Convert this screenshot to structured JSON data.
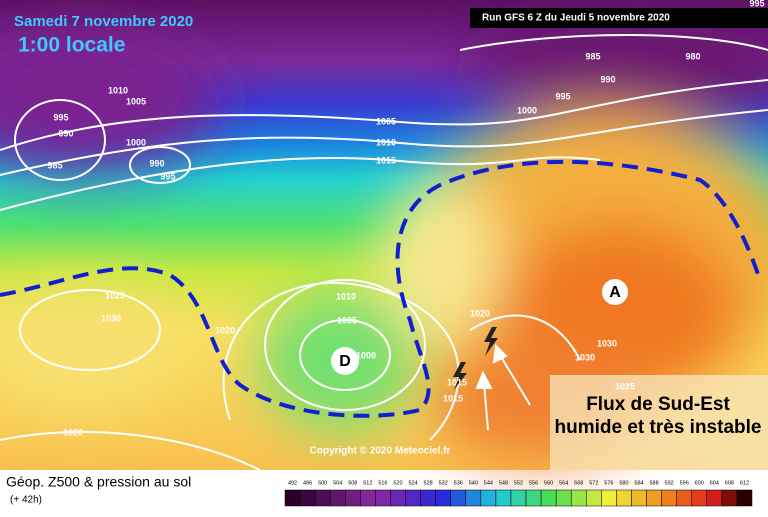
{
  "header": {
    "date": "Samedi 7 novembre 2020",
    "time": "1:00 locale",
    "run": "Run GFS 6 Z du Jeudi 5 novembre 2020"
  },
  "map": {
    "high_label": "A",
    "low_label": "D",
    "isobar_labels": [
      995,
      985,
      980,
      990,
      995,
      1000,
      1005,
      1010,
      1015,
      1010,
      1005,
      995,
      990,
      985,
      1000,
      990,
      995,
      1025,
      1030,
      1020,
      1010,
      1005,
      1000,
      1020,
      1015,
      1015,
      1030,
      1030,
      1025,
      1020
    ],
    "annotation": [
      "Flux de Sud-Est",
      "humide et très instable"
    ],
    "copyright": "Copyright © 2020 Meteociel.fr"
  },
  "footer": {
    "title": "Géop. Z500 & pression au sol",
    "lead": "(+ 42h)",
    "scale": [
      492,
      496,
      500,
      504,
      508,
      512,
      516,
      520,
      524,
      528,
      532,
      536,
      540,
      544,
      548,
      552,
      556,
      560,
      564,
      568,
      572,
      576,
      580,
      584,
      588,
      592,
      596,
      600,
      604,
      608,
      612
    ]
  }
}
